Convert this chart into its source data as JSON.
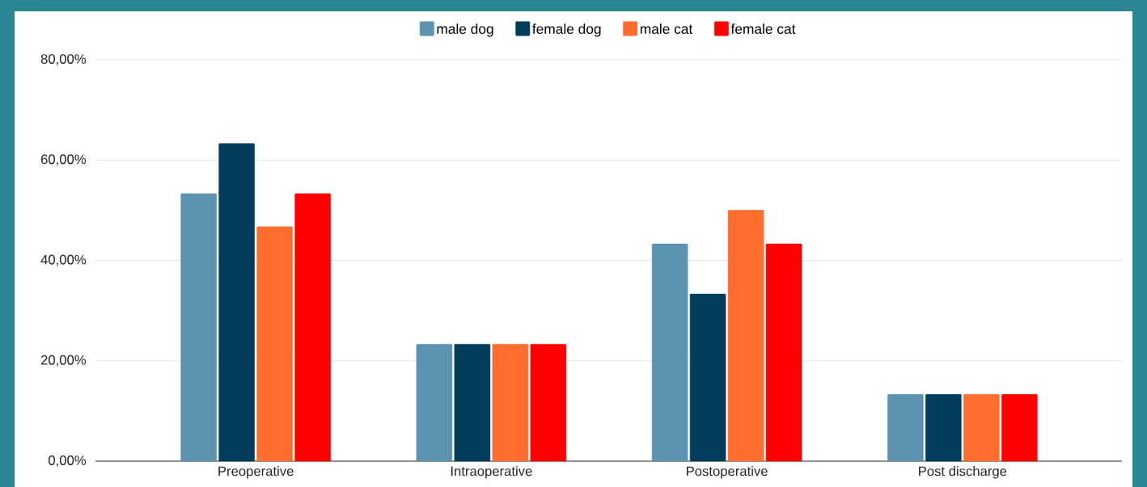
{
  "chart_data": {
    "type": "bar",
    "categories": [
      "Preoperative",
      "Intraoperative",
      "Postoperative",
      "Post discharge"
    ],
    "series": [
      {
        "name": "male dog",
        "color": "#5b93b0",
        "values": [
          53.3,
          23.3,
          43.3,
          13.3
        ]
      },
      {
        "name": "female dog",
        "color": "#023d5c",
        "values": [
          63.3,
          23.3,
          33.3,
          13.3
        ]
      },
      {
        "name": "male cat",
        "color": "#ff6d2e",
        "values": [
          46.7,
          23.3,
          50.0,
          13.3
        ]
      },
      {
        "name": "female cat",
        "color": "#ff0000",
        "values": [
          53.3,
          23.3,
          43.3,
          13.3
        ]
      }
    ],
    "ylim": [
      0,
      80
    ],
    "yticks": [
      {
        "value": 0,
        "label": "0,00%"
      },
      {
        "value": 20,
        "label": "20,00%"
      },
      {
        "value": 40,
        "label": "40,00%"
      },
      {
        "value": 60,
        "label": "60,00%"
      },
      {
        "value": 80,
        "label": "80,00%"
      }
    ],
    "grid": "y",
    "legend": "top"
  }
}
